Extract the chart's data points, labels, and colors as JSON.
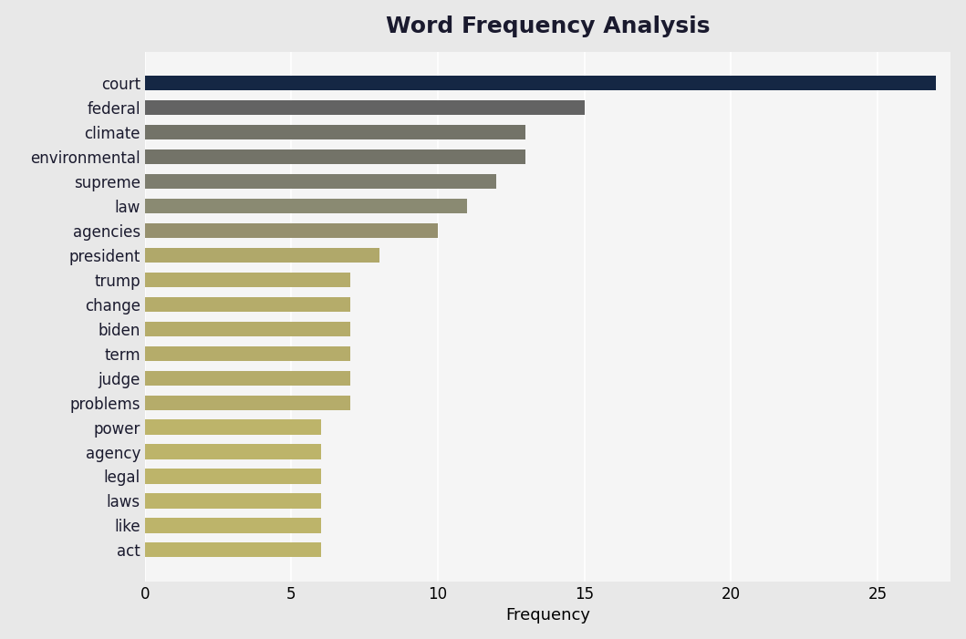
{
  "title": "Word Frequency Analysis",
  "categories": [
    "court",
    "federal",
    "climate",
    "environmental",
    "supreme",
    "law",
    "agencies",
    "president",
    "trump",
    "change",
    "biden",
    "term",
    "judge",
    "problems",
    "power",
    "agency",
    "legal",
    "laws",
    "like",
    "act"
  ],
  "values": [
    27,
    15,
    13,
    13,
    12,
    11,
    10,
    8,
    7,
    7,
    7,
    7,
    7,
    7,
    6,
    6,
    6,
    6,
    6,
    6
  ],
  "colors": [
    "#152744",
    "#636363",
    "#737368",
    "#737368",
    "#7d7d6e",
    "#8a8a72",
    "#96906e",
    "#b0a86a",
    "#b5ac6a",
    "#b5ac6a",
    "#b5ac6a",
    "#b5ac6a",
    "#b5ac6a",
    "#b5ac6a",
    "#bdb46a",
    "#bdb46a",
    "#bdb46a",
    "#bdb46a",
    "#bdb46a",
    "#bdb46a"
  ],
  "xlabel": "Frequency",
  "ylabel": "",
  "xlim": [
    0,
    27.5
  ],
  "xticks": [
    0,
    5,
    10,
    15,
    20,
    25
  ],
  "outer_background": "#e8e8e8",
  "plot_background": "#f5f5f5",
  "title_fontsize": 18,
  "tick_fontsize": 12,
  "label_fontsize": 13,
  "bar_height": 0.6
}
